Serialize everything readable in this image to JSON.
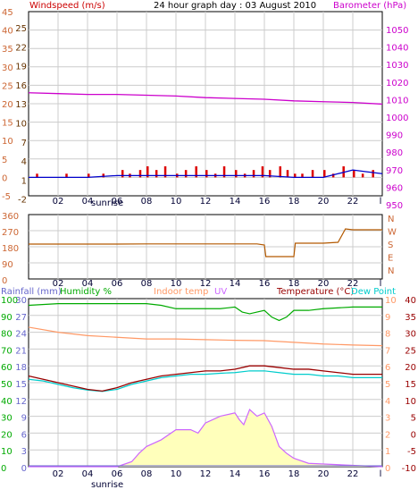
{
  "header": {
    "title": "24 hour graph day : 03 August 2010",
    "left_label": "Windspeed (m/s)",
    "right_label": "Barometer (hPa)",
    "sunrise_label": "sunrise",
    "sunset_label": "sunrise"
  },
  "colors": {
    "wind_title": "#cc0000",
    "baro_title": "#cc00cc",
    "title": "#000000",
    "speed_axis1": "#cc6633",
    "speed_axis2": "#663300",
    "baro_axis": "#cc00cc",
    "gust": "#dd0000",
    "wind": "#0000cc",
    "baro": "#cc00cc",
    "dir_line": "#b35900",
    "rain": "#6666cc",
    "humidity": "#00aa00",
    "indoor": "#ff9966",
    "uv": "#cc66ff",
    "temp": "#990000",
    "dew": "#00cccc",
    "solar_fill": "#ffffbb",
    "grid": "#cccccc"
  },
  "chart_data": [
    {
      "type": "line",
      "name": "wind_baro",
      "x_ticks": [
        "02",
        "04",
        "06",
        "08",
        "10",
        "12",
        "14",
        "16",
        "18",
        "20",
        "22",
        "l"
      ],
      "y_left_ticks_outer": [
        "45",
        "40",
        "35",
        "30",
        "25",
        "20",
        "15",
        "10",
        "5",
        "0",
        "-5"
      ],
      "y_left_ticks_inner": [
        "25",
        "22",
        "19",
        "16",
        "13",
        "10",
        "7",
        "4",
        "1",
        "-2"
      ],
      "y_right_ticks": [
        "1050",
        "1040",
        "1030",
        "1020",
        "1010",
        "1000",
        "990",
        "980",
        "970",
        "960",
        "950"
      ],
      "ylim_outer": [
        -5,
        45
      ],
      "ylim_baro": [
        950,
        1050
      ],
      "barometer": {
        "x": [
          0,
          2,
          4,
          6,
          8,
          10,
          12,
          14,
          16,
          18,
          20,
          22,
          24
        ],
        "values": [
          1012,
          1011.5,
          1011,
          1011,
          1010.5,
          1010,
          1009,
          1008.5,
          1008,
          1007,
          1006.5,
          1006,
          1005
        ]
      },
      "wind": {
        "x": [
          0,
          2,
          4,
          6,
          8,
          10,
          12,
          14,
          16,
          18,
          20,
          21,
          22,
          23,
          24
        ],
        "values": [
          0,
          0,
          0,
          0.5,
          0.5,
          0.5,
          0.5,
          0.5,
          0.5,
          0,
          0,
          1,
          2,
          1.5,
          1
        ]
      },
      "gust_bars": {
        "x": [
          0.5,
          2.5,
          4,
          5,
          6.3,
          6.8,
          7.5,
          8,
          8.6,
          9.2,
          10,
          10.6,
          11.3,
          12,
          12.6,
          13.2,
          14,
          14.6,
          15.2,
          15.8,
          16.3,
          17,
          17.5,
          18,
          18.5,
          19.2,
          20,
          20.6,
          21.3,
          22,
          22.6,
          23.3
        ],
        "values": [
          1,
          1,
          1,
          1,
          2,
          1,
          2,
          3,
          2,
          3,
          1,
          2,
          3,
          2,
          1,
          3,
          2,
          1,
          2,
          3,
          2,
          3,
          2,
          1,
          1,
          2,
          2,
          1,
          3,
          2,
          1,
          2
        ]
      }
    },
    {
      "type": "line",
      "name": "wind_direction",
      "x_ticks": [
        "02",
        "04",
        "06",
        "08",
        "10",
        "12",
        "14",
        "16",
        "18",
        "20",
        "22",
        "l"
      ],
      "y_ticks": [
        "360",
        "270",
        "180",
        "90",
        "0"
      ],
      "y_right_labels": [
        "N",
        "W",
        "S",
        "E",
        "N"
      ],
      "ylim": [
        0,
        360
      ],
      "direction": {
        "x": [
          0,
          2,
          4,
          6,
          8,
          10,
          12,
          14,
          15,
          15.5,
          16,
          16.1,
          17,
          17.5,
          18,
          18.1,
          19,
          20,
          21,
          21.5,
          22,
          24
        ],
        "values": [
          195,
          195,
          195,
          195,
          196,
          196,
          196,
          196,
          196,
          196,
          190,
          125,
          125,
          125,
          125,
          200,
          200,
          200,
          205,
          280,
          275,
          275
        ]
      }
    },
    {
      "type": "line",
      "name": "temp_humidity",
      "legend": {
        "rainfall": "Rainfall (mm)",
        "humidity": "Humidity %",
        "indoor": "Indoor temp",
        "uv": "UV",
        "temperature": "Temperature (°C)",
        "dewpoint": "Dew Point"
      },
      "x_ticks": [
        "02",
        "04",
        "06",
        "08",
        "10",
        "12",
        "14",
        "16",
        "18",
        "20",
        "22",
        "l"
      ],
      "y_hum_ticks": [
        "100",
        "90",
        "80",
        "70",
        "60",
        "50",
        "40",
        "30",
        "20",
        "10",
        "0"
      ],
      "y_rain_ticks": [
        "30",
        "27",
        "24",
        "21",
        "18",
        "15",
        "12",
        "9",
        "6",
        "3",
        "0"
      ],
      "y_uv_ticks": [
        "10",
        "9",
        "8",
        "7",
        "6",
        "5",
        "4",
        "3",
        "2",
        "1",
        "0"
      ],
      "y_temp_ticks": [
        "40",
        "35",
        "30",
        "25",
        "20",
        "15",
        "10",
        "5",
        "0",
        "-5",
        "-10"
      ],
      "ylim_temp": [
        -10,
        40
      ],
      "ylim_hum": [
        0,
        100
      ],
      "ylim_uv": [
        0,
        10
      ],
      "humidity": {
        "x": [
          0,
          2,
          4,
          6,
          8,
          9,
          10,
          11,
          12,
          13,
          14,
          14.5,
          15,
          16,
          16.5,
          17,
          17.5,
          18,
          19,
          20,
          22,
          24
        ],
        "values": [
          96,
          97,
          97,
          97,
          97,
          96,
          94,
          94,
          94,
          94,
          95,
          92,
          91,
          93,
          89,
          87,
          89,
          93,
          93,
          94,
          95,
          95
        ]
      },
      "indoor_temp": {
        "x": [
          0,
          2,
          4,
          6,
          8,
          10,
          12,
          14,
          16,
          18,
          20,
          22,
          24
        ],
        "values": [
          31.5,
          30,
          29,
          28.5,
          28,
          28,
          27.8,
          27.6,
          27.5,
          27,
          26.5,
          26.2,
          26
        ]
      },
      "temperature": {
        "x": [
          0,
          1,
          2,
          3,
          4,
          5,
          6,
          7,
          8,
          9,
          10,
          11,
          12,
          13,
          14,
          15,
          16,
          17,
          18,
          19,
          20,
          21,
          22,
          23,
          24
        ],
        "values": [
          17,
          16,
          15,
          14,
          13,
          12.5,
          13.5,
          15,
          16,
          17,
          17.5,
          18,
          18.5,
          18.5,
          19,
          20,
          20,
          19.5,
          19,
          19,
          18.5,
          18,
          17.5,
          17.5,
          17.5
        ]
      },
      "dewpoint": {
        "x": [
          0,
          1,
          2,
          3,
          4,
          5,
          6,
          7,
          8,
          9,
          10,
          11,
          12,
          13,
          14,
          15,
          16,
          17,
          18,
          19,
          20,
          21,
          22,
          23,
          24
        ],
        "values": [
          16,
          15.5,
          14.5,
          13.5,
          12.8,
          12.4,
          13,
          14.5,
          15.5,
          16.5,
          17,
          17.5,
          17.5,
          17.8,
          18,
          18.5,
          18.5,
          18,
          17.5,
          17.5,
          17,
          17,
          16.5,
          16.5,
          16.5
        ]
      },
      "uv": {
        "x": [
          0,
          6,
          7,
          7.5,
          8,
          9,
          10,
          11,
          11.5,
          12,
          13,
          14,
          14.3,
          14.6,
          15,
          15.5,
          16,
          16.5,
          17,
          17.5,
          18,
          19,
          24
        ],
        "values": [
          0,
          0,
          0.3,
          0.8,
          1.2,
          1.6,
          2.2,
          2.2,
          2.0,
          2.6,
          3.0,
          3.2,
          2.8,
          2.5,
          3.4,
          3.0,
          3.2,
          2.4,
          1.2,
          0.8,
          0.5,
          0.2,
          0
        ]
      },
      "rainfall": {
        "x": [
          0,
          24
        ],
        "values": [
          0,
          0
        ]
      }
    }
  ]
}
